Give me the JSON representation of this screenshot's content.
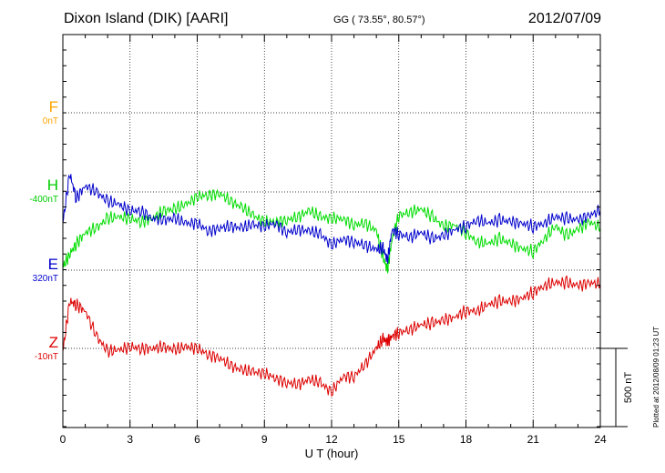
{
  "header": {
    "title": "Dixon Island (DIK)  [AARI]",
    "coords": "GG ( 73.55°,  80.57°)",
    "date": "2012/07/09"
  },
  "footer": {
    "plotted": "Plotted at 2012/08/09 01:23 UT"
  },
  "components": [
    {
      "key": "F",
      "label": "F",
      "base": "0nT",
      "color": "#ffa500"
    },
    {
      "key": "H",
      "label": "H",
      "base": "-400nT",
      "color": "#00dd00"
    },
    {
      "key": "E",
      "label": "E",
      "base": "320nT",
      "color": "#0000cc"
    },
    {
      "key": "Z",
      "label": "Z",
      "base": "-10nT",
      "color": "#dd0000"
    }
  ],
  "chart_data": {
    "type": "line",
    "title": "Dixon Island (DIK)  [AARI]",
    "xlabel": "U T (hour)",
    "xlim": [
      0,
      24
    ],
    "xticks": [
      "0",
      "3",
      "6",
      "9",
      "12",
      "15",
      "18",
      "21",
      "24"
    ],
    "scale_bar": "500 nT",
    "grid": true,
    "series": [
      {
        "name": "H",
        "color": "#00dd00",
        "x": [
          0,
          0.3,
          0.6,
          1.0,
          1.5,
          2.0,
          2.5,
          3.0,
          3.5,
          4.0,
          4.5,
          5.0,
          5.5,
          6.0,
          6.5,
          7.0,
          7.5,
          8.0,
          8.5,
          9.0,
          9.5,
          10.0,
          10.5,
          11.0,
          11.5,
          12.0,
          12.5,
          13.0,
          13.5,
          14.0,
          14.3,
          14.5,
          14.7,
          15.0,
          15.5,
          16.0,
          16.5,
          17.0,
          17.5,
          18.0,
          18.5,
          19.0,
          19.5,
          20.0,
          20.5,
          21.0,
          21.5,
          22.0,
          22.5,
          23.0,
          23.5,
          24.0
        ],
        "y": [
          -480,
          -400,
          -330,
          -260,
          -230,
          -170,
          -160,
          -170,
          -190,
          -170,
          -120,
          -110,
          -80,
          -30,
          -20,
          -10,
          -60,
          -100,
          -150,
          -190,
          -190,
          -180,
          -160,
          -120,
          -160,
          -170,
          -170,
          -210,
          -200,
          -250,
          -420,
          -500,
          -300,
          -150,
          -130,
          -110,
          -160,
          -220,
          -210,
          -260,
          -320,
          -330,
          -300,
          -330,
          -360,
          -380,
          -300,
          -220,
          -280,
          -240,
          -190,
          -230
        ]
      },
      {
        "name": "E",
        "color": "#0000cc",
        "x": [
          0,
          0.3,
          0.6,
          1.0,
          1.5,
          2.0,
          2.5,
          3.0,
          3.5,
          4.0,
          4.5,
          5.0,
          5.5,
          6.0,
          6.5,
          7.0,
          7.5,
          8.0,
          8.5,
          9.0,
          9.5,
          10.0,
          10.5,
          11.0,
          11.5,
          12.0,
          12.5,
          13.0,
          13.5,
          14.0,
          14.3,
          14.5,
          14.7,
          15.0,
          15.5,
          16.0,
          16.5,
          17.0,
          17.5,
          18.0,
          18.5,
          19.0,
          19.5,
          20.0,
          20.5,
          21.0,
          21.5,
          22.0,
          22.5,
          23.0,
          23.5,
          24.0
        ],
        "y": [
          300,
          620,
          460,
          540,
          500,
          440,
          420,
          380,
          380,
          330,
          320,
          330,
          300,
          300,
          250,
          270,
          280,
          270,
          290,
          280,
          300,
          240,
          260,
          250,
          230,
          160,
          200,
          180,
          160,
          130,
          140,
          60,
          260,
          230,
          210,
          240,
          200,
          220,
          260,
          280,
          320,
          300,
          320,
          310,
          300,
          280,
          300,
          340,
          330,
          320,
          350,
          380
        ]
      },
      {
        "name": "Z",
        "color": "#dd0000",
        "x": [
          0,
          0.3,
          0.6,
          1.0,
          1.5,
          2.0,
          2.5,
          3.0,
          3.5,
          4.0,
          4.5,
          5.0,
          5.5,
          6.0,
          6.5,
          7.0,
          7.5,
          8.0,
          8.5,
          9.0,
          9.5,
          10.0,
          10.5,
          11.0,
          11.5,
          12.0,
          12.5,
          13.0,
          13.5,
          14.0,
          14.3,
          14.5,
          14.7,
          15.0,
          15.5,
          16.0,
          16.5,
          17.0,
          17.5,
          18.0,
          18.5,
          19.0,
          19.5,
          20.0,
          20.5,
          21.0,
          21.5,
          22.0,
          22.5,
          23.0,
          23.5,
          24.0
        ],
        "y": [
          -20,
          300,
          280,
          240,
          80,
          -20,
          -10,
          10,
          0,
          0,
          10,
          -10,
          10,
          0,
          -40,
          -60,
          -110,
          -140,
          -150,
          -160,
          -190,
          -220,
          -230,
          -200,
          -220,
          -280,
          -180,
          -180,
          -100,
          0,
          60,
          40,
          80,
          100,
          120,
          150,
          160,
          180,
          200,
          240,
          240,
          280,
          300,
          300,
          320,
          360,
          400,
          420,
          420,
          400,
          420,
          410
        ]
      }
    ]
  }
}
